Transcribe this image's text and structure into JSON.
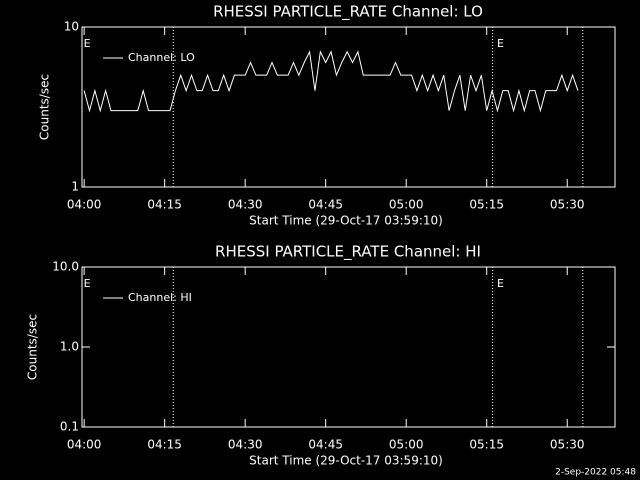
{
  "chart_data": [
    {
      "type": "line",
      "title": "RHESSI PARTICLE_RATE Channel: LO",
      "xlabel": "Start Time (29-Oct-17 03:59:10)",
      "ylabel": "Counts/sec",
      "log_y": true,
      "ylim": [
        1,
        10
      ],
      "yticks": [
        1,
        10
      ],
      "xlim": [
        -0.4,
        98.9
      ],
      "xticks": [
        {
          "value": 0,
          "label": "04:00"
        },
        {
          "value": 15,
          "label": "04:15"
        },
        {
          "value": 30,
          "label": "04:30"
        },
        {
          "value": 45,
          "label": "04:45"
        },
        {
          "value": 60,
          "label": "05:00"
        },
        {
          "value": 75,
          "label": "05:15"
        },
        {
          "value": 90,
          "label": "05:30"
        }
      ],
      "event_times": [
        16.6,
        76.1,
        92.9
      ],
      "flags": [
        {
          "label": "E",
          "x": 0
        },
        {
          "label": "E",
          "x": 77
        }
      ],
      "series": [
        {
          "name": "Channel: LO",
          "color": "#ffffff",
          "x": [
            0,
            1,
            2,
            3,
            4,
            5,
            6,
            7,
            8,
            9,
            10,
            11,
            12,
            13,
            14,
            15,
            16,
            17,
            18,
            19,
            20,
            21,
            22,
            23,
            24,
            25,
            26,
            27,
            28,
            29,
            30,
            31,
            32,
            33,
            34,
            35,
            36,
            37,
            38,
            39,
            40,
            41,
            42,
            43,
            44,
            45,
            46,
            47,
            48,
            49,
            50,
            51,
            52,
            53,
            54,
            55,
            56,
            57,
            58,
            59,
            60,
            61,
            62,
            63,
            64,
            65,
            66,
            67,
            68,
            69,
            70,
            71,
            72,
            73,
            74,
            75,
            76,
            77,
            78,
            79,
            80,
            81,
            82,
            83,
            84,
            85,
            86,
            87,
            88,
            89,
            90,
            91,
            92
          ],
          "values": [
            4,
            3,
            4,
            3,
            4,
            3,
            3,
            3,
            3,
            3,
            3,
            4,
            3,
            3,
            3,
            3,
            3,
            4,
            5,
            4,
            5,
            4,
            4,
            5,
            4,
            4,
            5,
            4,
            5,
            5,
            5,
            6,
            5,
            5,
            5,
            6,
            5,
            5,
            5,
            6,
            5,
            6,
            7,
            4,
            7,
            6,
            7,
            5,
            6,
            7,
            6,
            7,
            5,
            5,
            5,
            5,
            5,
            5,
            6,
            5,
            5,
            5,
            4,
            5,
            4,
            5,
            4,
            5,
            3,
            4,
            5,
            3,
            5,
            4,
            5,
            3,
            4,
            3,
            4,
            4,
            3,
            4,
            3,
            4,
            4,
            3,
            4,
            4,
            4,
            5,
            4,
            5,
            4
          ]
        }
      ]
    },
    {
      "type": "line",
      "title": "RHESSI PARTICLE_RATE Channel: HI",
      "xlabel": "Start Time (29-Oct-17 03:59:10)",
      "ylabel": "Counts/sec",
      "log_y": true,
      "ylim": [
        0.1,
        10
      ],
      "yticks": [
        0.1,
        {
          "value": 1,
          "label": "1.0"
        },
        {
          "value": 10,
          "label": "10.0"
        }
      ],
      "xlim": [
        -0.4,
        98.9
      ],
      "xticks": [
        {
          "value": 0,
          "label": "04:00"
        },
        {
          "value": 15,
          "label": "04:15"
        },
        {
          "value": 30,
          "label": "04:30"
        },
        {
          "value": 45,
          "label": "04:45"
        },
        {
          "value": 60,
          "label": "05:00"
        },
        {
          "value": 75,
          "label": "05:15"
        },
        {
          "value": 90,
          "label": "05:30"
        }
      ],
      "event_times": [
        16.6,
        76.1,
        92.9
      ],
      "flags": [
        {
          "label": "E",
          "x": 0
        },
        {
          "label": "E",
          "x": 77
        }
      ],
      "series": [
        {
          "name": "Channel: HI",
          "color": "#ffffff",
          "x": [],
          "values": []
        }
      ]
    }
  ],
  "footer": "2-Sep-2022 05:48"
}
